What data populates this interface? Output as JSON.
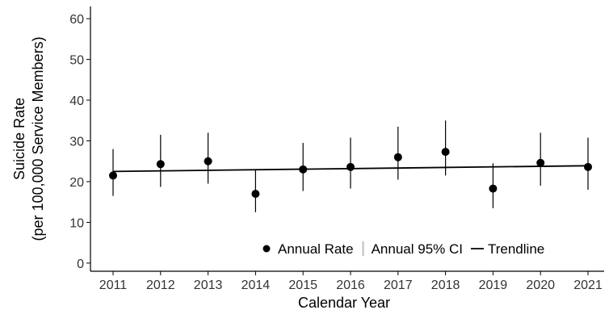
{
  "chart_data": {
    "type": "scatter",
    "x": [
      "2011",
      "2012",
      "2013",
      "2014",
      "2015",
      "2016",
      "2017",
      "2018",
      "2019",
      "2020",
      "2021"
    ],
    "series": [
      {
        "name": "Annual Rate",
        "values": [
          21.5,
          24.3,
          25.0,
          17.0,
          23.0,
          23.6,
          26.0,
          27.3,
          18.3,
          24.6,
          23.6
        ],
        "ci_low": [
          16.5,
          18.7,
          19.5,
          12.5,
          17.7,
          18.3,
          20.5,
          21.5,
          13.5,
          19.0,
          18.0
        ],
        "ci_high": [
          28.0,
          31.5,
          32.0,
          23.0,
          29.5,
          30.8,
          33.5,
          35.0,
          24.5,
          32.0,
          30.8
        ]
      }
    ],
    "trendline": {
      "name": "Trendline",
      "start": 22.5,
      "end": 23.9
    },
    "xlabel": "Calendar Year",
    "ylabel_line1": "Suicide Rate",
    "ylabel_line2": "(per 100,000 Service Members)",
    "ylim": [
      -2,
      63
    ],
    "yticks": [
      0,
      10,
      20,
      30,
      40,
      50,
      60
    ],
    "grid": false,
    "legend": {
      "placement": "bottom-right",
      "items": [
        {
          "kind": "point",
          "label": "Annual Rate"
        },
        {
          "kind": "errorbar",
          "label": "Annual 95% CI"
        },
        {
          "kind": "line",
          "label": "Trendline"
        }
      ]
    },
    "colors": {
      "point": "#000000",
      "ci": "#000000",
      "trendline": "#000000",
      "axis": "#000000",
      "legend_ci": "#bfbfbf"
    }
  }
}
